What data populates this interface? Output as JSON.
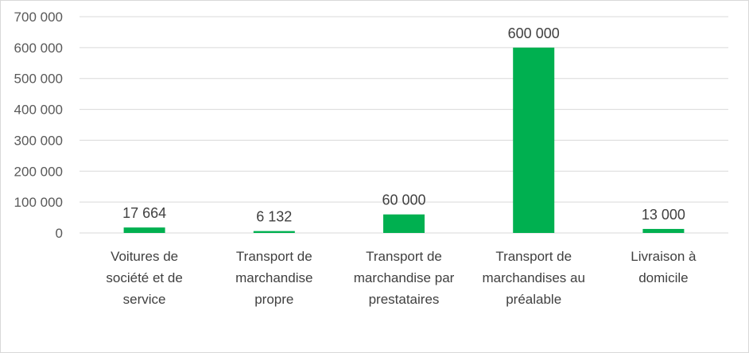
{
  "chart_data": {
    "type": "bar",
    "title": "",
    "xlabel": "",
    "ylabel": "",
    "categories": [
      [
        "Voitures de",
        "société et de",
        "service"
      ],
      [
        "Transport de",
        "marchandise",
        "propre"
      ],
      [
        "Transport de",
        "marchandise par",
        "prestataires"
      ],
      [
        "Transport de",
        "marchandises au",
        "préalable"
      ],
      [
        "Livraison à",
        "domicile"
      ]
    ],
    "values": [
      17664,
      6132,
      60000,
      600000,
      13000
    ],
    "data_labels": [
      "17 664",
      "6 132",
      "60 000",
      "600 000",
      "13 000"
    ],
    "yticks": [
      0,
      100000,
      200000,
      300000,
      400000,
      500000,
      600000,
      700000
    ],
    "ytick_labels": [
      "0",
      "100 000",
      "200 000",
      "300 000",
      "400 000",
      "500 000",
      "600 000",
      "700 000"
    ],
    "ylim": [
      0,
      700000
    ],
    "grid": true,
    "legend": "none",
    "bar_color": "#00b050",
    "grid_color": "#d9d9d9"
  }
}
